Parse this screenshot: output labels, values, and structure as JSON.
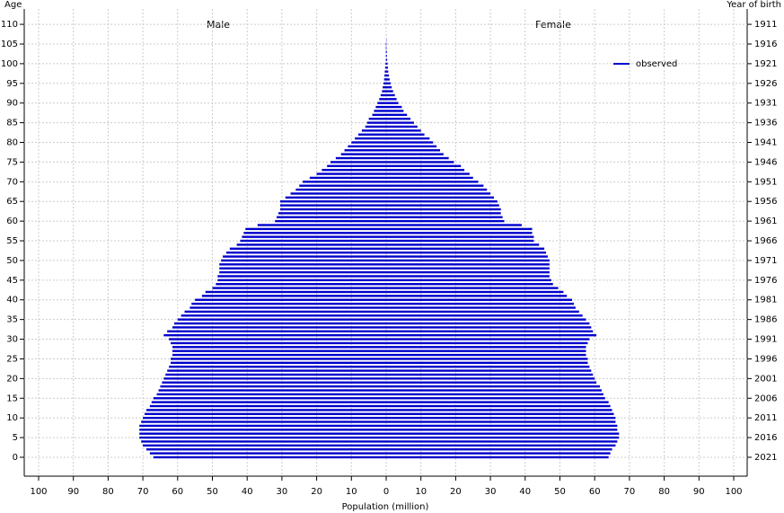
{
  "chart_data": {
    "type": "pyramid",
    "y_label": "Age",
    "y2_label": "Year of birth",
    "x_label": "Population (million)",
    "left_label": "Male",
    "right_label": "Female",
    "legend": "top-right",
    "legend_label": "observed",
    "grid": true,
    "color": "#0000cc",
    "categories": [
      0,
      1,
      2,
      3,
      4,
      5,
      6,
      7,
      8,
      9,
      10,
      11,
      12,
      13,
      14,
      15,
      16,
      17,
      18,
      19,
      20,
      21,
      22,
      23,
      24,
      25,
      26,
      27,
      28,
      29,
      30,
      31,
      32,
      33,
      34,
      35,
      36,
      37,
      38,
      39,
      40,
      41,
      42,
      43,
      44,
      45,
      46,
      47,
      48,
      49,
      50,
      51,
      52,
      53,
      54,
      55,
      56,
      57,
      58,
      59,
      60,
      61,
      62,
      63,
      64,
      65,
      66,
      67,
      68,
      69,
      70,
      71,
      72,
      73,
      74,
      75,
      76,
      77,
      78,
      79,
      80,
      81,
      82,
      83,
      84,
      85,
      86,
      87,
      88,
      89,
      90,
      91,
      92,
      93,
      94,
      95,
      96,
      97,
      98,
      99,
      100,
      101,
      102,
      103,
      104,
      105,
      106,
      107,
      108,
      109,
      110
    ],
    "series": [
      {
        "name": "Male",
        "values": [
          67,
          68,
          69,
          70,
          70.5,
          71,
          71,
          71,
          71,
          70.5,
          70,
          69.5,
          69,
          68,
          67.5,
          67,
          66,
          65.5,
          65,
          64.5,
          64,
          63.5,
          63,
          62.5,
          62,
          62,
          61.5,
          61.5,
          61.5,
          62,
          62.5,
          64,
          63,
          61.5,
          61,
          60,
          59,
          58,
          56.5,
          56,
          55,
          53,
          52,
          50,
          49,
          48.5,
          48.5,
          48,
          48,
          48,
          47.5,
          47,
          46,
          45,
          43,
          42,
          41.5,
          41,
          40.5,
          37,
          32,
          31.5,
          31,
          30.5,
          30.5,
          30.5,
          29,
          27.5,
          26,
          25,
          24,
          22,
          20,
          18.5,
          17,
          16,
          14.5,
          13,
          12,
          11,
          10,
          9,
          8,
          7,
          6,
          5.5,
          5,
          4,
          3.5,
          3,
          2.5,
          2,
          1.6,
          1.2,
          1,
          0.8,
          0.6,
          0.5,
          0.4,
          0.3,
          0.2,
          0.1,
          0.1,
          0.1,
          0.1,
          0.1,
          0,
          0,
          0,
          0,
          0
        ]
      },
      {
        "name": "Female",
        "values": [
          64,
          64.5,
          65,
          66,
          66.5,
          67,
          67,
          66.5,
          66.5,
          66,
          66,
          65.5,
          65,
          64.5,
          64,
          63,
          62.5,
          62,
          61.5,
          60.5,
          60,
          59.5,
          59,
          58.5,
          58,
          58,
          57.5,
          57.5,
          57.5,
          58,
          58.5,
          60.5,
          59.5,
          59,
          58.5,
          57.5,
          56.5,
          55.5,
          54.5,
          54,
          53.5,
          52,
          51,
          49.5,
          48,
          47.5,
          47,
          47,
          47,
          47,
          47,
          46.5,
          46,
          45.5,
          44,
          42.5,
          42.5,
          42,
          42,
          39,
          34,
          33.5,
          33,
          33,
          32.5,
          32,
          31,
          30,
          29,
          28,
          26.5,
          25,
          24,
          22.5,
          21.5,
          19.5,
          18,
          16.5,
          15.5,
          14.5,
          13.5,
          12.5,
          11,
          10,
          9,
          8,
          7,
          6,
          5,
          4.5,
          3.5,
          3,
          2.5,
          2,
          1.6,
          1.3,
          1,
          0.8,
          0.6,
          0.5,
          0.4,
          0.3,
          0.2,
          0.2,
          0.1,
          0.1,
          0.1,
          0,
          0,
          0,
          0
        ]
      }
    ],
    "xlim": [
      -100,
      100
    ],
    "xticks": [
      {
        "value": -100,
        "label": "100"
      },
      {
        "value": -90,
        "label": "90"
      },
      {
        "value": -80,
        "label": "80"
      },
      {
        "value": -70,
        "label": "70"
      },
      {
        "value": -60,
        "label": "60"
      },
      {
        "value": -50,
        "label": "50"
      },
      {
        "value": -40,
        "label": "40"
      },
      {
        "value": -30,
        "label": "30"
      },
      {
        "value": -20,
        "label": "20"
      },
      {
        "value": -10,
        "label": "10"
      },
      0,
      10,
      20,
      30,
      40,
      50,
      60,
      70,
      80,
      90,
      100
    ],
    "ylim": [
      -4.8,
      113.9
    ],
    "yticks": [
      0,
      5,
      10,
      15,
      20,
      25,
      30,
      35,
      40,
      45,
      50,
      55,
      60,
      65,
      70,
      75,
      80,
      85,
      90,
      95,
      100,
      105,
      110
    ],
    "y2lim": [
      2025.8,
      1907.1
    ],
    "y2ticks": [
      2021,
      2016,
      2011,
      2006,
      2001,
      1996,
      1991,
      1986,
      1981,
      1976,
      1971,
      1966,
      1961,
      1956,
      1951,
      1946,
      1941,
      1936,
      1931,
      1926,
      1921,
      1916,
      1911
    ]
  }
}
